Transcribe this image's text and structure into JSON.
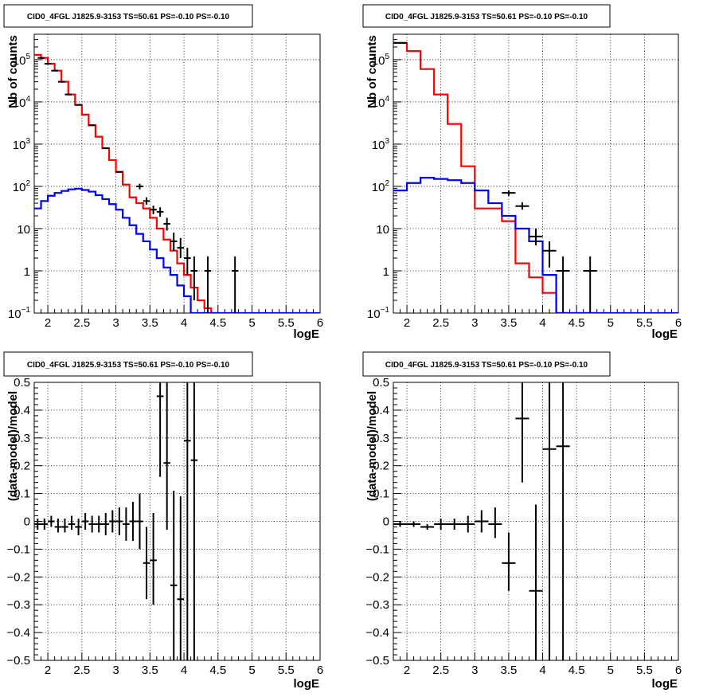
{
  "chart_data": [
    {
      "id": "top-left",
      "type": "line",
      "title": "CID0_4FGL J1825.9-3153 TS=50.61 PS=-0.10 PS=-0.10",
      "xlabel": "logE",
      "ylabel": "Nb of counts",
      "xlim": [
        1.8,
        6.0
      ],
      "ylim": [
        0.1,
        400000
      ],
      "yscale": "log",
      "grid": true,
      "x_ticks": [
        2,
        2.5,
        3,
        3.5,
        4,
        4.5,
        5,
        5.5,
        6
      ],
      "x_tick_labels": [
        "2",
        "2.5",
        "3",
        "3.5",
        "4",
        "4.5",
        "5",
        "5.5",
        "6"
      ],
      "y_ticks": [
        0.1,
        1,
        10,
        100,
        1000,
        10000,
        100000
      ],
      "y_tick_labels": [
        [
          "10",
          "−1"
        ],
        [
          "1",
          ""
        ],
        [
          "10",
          ""
        ],
        [
          "10",
          "2"
        ],
        [
          "10",
          "3"
        ],
        [
          "10",
          "4"
        ],
        [
          "10",
          "5"
        ]
      ],
      "series": [
        {
          "color": "#ff0000",
          "style": "step",
          "bin_edges": [
            1.8,
            1.9,
            2.0,
            2.1,
            2.2,
            2.3,
            2.4,
            2.5,
            2.6,
            2.7,
            2.8,
            2.9,
            3.0,
            3.1,
            3.2,
            3.3,
            3.4,
            3.5,
            3.6,
            3.7,
            3.8,
            3.9,
            4.0,
            4.1,
            4.2,
            4.3,
            4.4,
            4.5
          ],
          "values": [
            130000,
            110000,
            80000,
            55000,
            30000,
            15000,
            8500,
            5000,
            2800,
            1500,
            800,
            420,
            220,
            110,
            55,
            40,
            30,
            18,
            10,
            5.5,
            3.0,
            1.5,
            0.8,
            0.4,
            0.2,
            0.13,
            0.1
          ]
        },
        {
          "color": "#0000ff",
          "style": "step",
          "bin_edges": [
            1.8,
            1.9,
            2.0,
            2.1,
            2.2,
            2.3,
            2.4,
            2.5,
            2.6,
            2.7,
            2.8,
            2.9,
            3.0,
            3.1,
            3.2,
            3.3,
            3.4,
            3.5,
            3.6,
            3.7,
            3.8,
            3.9,
            4.0,
            4.1,
            4.2,
            6.0
          ],
          "values": [
            30,
            45,
            60,
            70,
            78,
            85,
            88,
            82,
            75,
            62,
            50,
            38,
            28,
            18,
            12,
            7.5,
            5,
            3.2,
            2,
            1.2,
            0.8,
            0.45,
            0.25,
            0.1,
            0.1
          ]
        }
      ],
      "points": [
        {
          "x": 1.9,
          "y": 110000,
          "xerr": 0.05,
          "ylo": 110000,
          "yhi": 110000
        },
        {
          "x": 2.0,
          "y": 80000,
          "xerr": 0.05,
          "ylo": 80000,
          "yhi": 80000
        },
        {
          "x": 2.1,
          "y": 55000,
          "xerr": 0.05,
          "ylo": 55000,
          "yhi": 55000
        },
        {
          "x": 2.2,
          "y": 30000,
          "xerr": 0.05,
          "ylo": 30000,
          "yhi": 30000
        },
        {
          "x": 2.3,
          "y": 15000,
          "xerr": 0.05,
          "ylo": 15000,
          "yhi": 15000
        },
        {
          "x": 2.45,
          "y": 8500,
          "xerr": 0.05,
          "ylo": 8500,
          "yhi": 8500
        },
        {
          "x": 2.65,
          "y": 2800,
          "xerr": 0.05,
          "ylo": 2800,
          "yhi": 2800
        },
        {
          "x": 2.85,
          "y": 800,
          "xerr": 0.05,
          "ylo": 800,
          "yhi": 800
        },
        {
          "x": 3.05,
          "y": 220,
          "xerr": 0.05,
          "ylo": 220,
          "yhi": 220
        },
        {
          "x": 3.35,
          "y": 100,
          "xerr": 0.05,
          "ylo": 85,
          "yhi": 115
        },
        {
          "x": 3.45,
          "y": 45,
          "xerr": 0.05,
          "ylo": 37,
          "yhi": 55
        },
        {
          "x": 3.55,
          "y": 28,
          "xerr": 0.05,
          "ylo": 22,
          "yhi": 35
        },
        {
          "x": 3.65,
          "y": 25,
          "xerr": 0.05,
          "ylo": 19,
          "yhi": 32
        },
        {
          "x": 3.75,
          "y": 13,
          "xerr": 0.05,
          "ylo": 9,
          "yhi": 18
        },
        {
          "x": 3.85,
          "y": 5,
          "xerr": 0.05,
          "ylo": 3,
          "yhi": 8
        },
        {
          "x": 3.95,
          "y": 3.5,
          "xerr": 0.05,
          "ylo": 2,
          "yhi": 6
        },
        {
          "x": 4.05,
          "y": 2,
          "xerr": 0.05,
          "ylo": 0.8,
          "yhi": 3.5
        },
        {
          "x": 4.15,
          "y": 1,
          "xerr": 0.05,
          "ylo": 0.2,
          "yhi": 2.2
        },
        {
          "x": 4.35,
          "y": 1,
          "xerr": 0.05,
          "ylo": 0.1,
          "yhi": 2.2
        },
        {
          "x": 4.75,
          "y": 1,
          "xerr": 0.05,
          "ylo": 0.1,
          "yhi": 2.2
        }
      ]
    },
    {
      "id": "top-right",
      "type": "line",
      "title": "CID0_4FGL J1825.9-3153 TS=50.61 PS=-0.10 PS=-0.10",
      "xlabel": "logE",
      "ylabel": "Nb of counts",
      "xlim": [
        1.8,
        6.0
      ],
      "ylim": [
        0.1,
        400000
      ],
      "yscale": "log",
      "grid": true,
      "x_ticks": [
        2,
        2.5,
        3,
        3.5,
        4,
        4.5,
        5,
        5.5,
        6
      ],
      "x_tick_labels": [
        "2",
        "2.5",
        "3",
        "3.5",
        "4",
        "4.5",
        "5",
        "5.5",
        "6"
      ],
      "y_ticks": [
        0.1,
        1,
        10,
        100,
        1000,
        10000,
        100000
      ],
      "y_tick_labels": [
        [
          "10",
          "−1"
        ],
        [
          "1",
          ""
        ],
        [
          "10",
          ""
        ],
        [
          "10",
          "2"
        ],
        [
          "10",
          "3"
        ],
        [
          "10",
          "4"
        ],
        [
          "10",
          "5"
        ]
      ],
      "series": [
        {
          "color": "#ff0000",
          "style": "step",
          "bin_edges": [
            1.8,
            2.0,
            2.2,
            2.4,
            2.6,
            2.8,
            3.0,
            3.2,
            3.4,
            3.6,
            3.8,
            4.0,
            4.2,
            4.4,
            4.6,
            4.8
          ],
          "values": [
            250000,
            160000,
            60000,
            15000,
            3000,
            300,
            30,
            30,
            15,
            1.5,
            0.7,
            0.3,
            0.1,
            0.1,
            0.1
          ]
        },
        {
          "color": "#0000ff",
          "style": "step",
          "bin_edges": [
            1.8,
            2.0,
            2.2,
            2.4,
            2.6,
            2.8,
            3.0,
            3.2,
            3.4,
            3.6,
            3.8,
            4.0,
            4.2,
            6.0
          ],
          "values": [
            80,
            120,
            160,
            150,
            140,
            120,
            80,
            40,
            20,
            10,
            5,
            0.8,
            0.1
          ]
        }
      ],
      "points": [
        {
          "x": 1.9,
          "y": 250000,
          "xerr": 0.1,
          "ylo": 250000,
          "yhi": 250000
        },
        {
          "x": 3.5,
          "y": 70,
          "xerr": 0.1,
          "ylo": 60,
          "yhi": 80
        },
        {
          "x": 3.7,
          "y": 34,
          "xerr": 0.1,
          "ylo": 28,
          "yhi": 42
        },
        {
          "x": 3.9,
          "y": 6.5,
          "xerr": 0.1,
          "ylo": 4,
          "yhi": 10
        },
        {
          "x": 4.1,
          "y": 3,
          "xerr": 0.1,
          "ylo": 1.2,
          "yhi": 5
        },
        {
          "x": 4.3,
          "y": 1,
          "xerr": 0.1,
          "ylo": 0.1,
          "yhi": 2.2
        },
        {
          "x": 4.7,
          "y": 1,
          "xerr": 0.1,
          "ylo": 0.1,
          "yhi": 2.2
        }
      ]
    },
    {
      "id": "bottom-left",
      "type": "scatter",
      "title": "CID0_4FGL J1825.9-3153 TS=50.61 PS=-0.10 PS=-0.10",
      "xlabel": "logE",
      "ylabel": "(data-model)/model",
      "xlim": [
        1.8,
        6.0
      ],
      "ylim": [
        -0.5,
        0.5
      ],
      "yscale": "linear",
      "grid": true,
      "x_ticks": [
        2,
        2.5,
        3,
        3.5,
        4,
        4.5,
        5,
        5.5,
        6
      ],
      "x_tick_labels": [
        "2",
        "2.5",
        "3",
        "3.5",
        "4",
        "4.5",
        "5",
        "5.5",
        "6"
      ],
      "y_ticks": [
        -0.5,
        -0.4,
        -0.3,
        -0.2,
        -0.1,
        0,
        0.1,
        0.2,
        0.3,
        0.4,
        0.5
      ],
      "y_tick_labels": [
        "−0.5",
        "−0.4",
        "−0.3",
        "−0.2",
        "−0.1",
        "0",
        "0.1",
        "0.2",
        "0.3",
        "0.4",
        "0.5"
      ],
      "points": [
        {
          "x": 1.85,
          "y": -0.01,
          "xerr": 0.05,
          "ylo": -0.03,
          "yhi": 0.01
        },
        {
          "x": 1.95,
          "y": -0.01,
          "xerr": 0.05,
          "ylo": -0.03,
          "yhi": 0.01
        },
        {
          "x": 2.05,
          "y": 0.0,
          "xerr": 0.05,
          "ylo": -0.02,
          "yhi": 0.02
        },
        {
          "x": 2.15,
          "y": -0.02,
          "xerr": 0.05,
          "ylo": -0.04,
          "yhi": 0.01
        },
        {
          "x": 2.25,
          "y": -0.02,
          "xerr": 0.05,
          "ylo": -0.04,
          "yhi": 0.01
        },
        {
          "x": 2.35,
          "y": -0.01,
          "xerr": 0.05,
          "ylo": -0.03,
          "yhi": 0.02
        },
        {
          "x": 2.45,
          "y": -0.02,
          "xerr": 0.05,
          "ylo": -0.05,
          "yhi": 0.01
        },
        {
          "x": 2.55,
          "y": 0.0,
          "xerr": 0.05,
          "ylo": -0.03,
          "yhi": 0.03
        },
        {
          "x": 2.65,
          "y": -0.01,
          "xerr": 0.05,
          "ylo": -0.04,
          "yhi": 0.02
        },
        {
          "x": 2.75,
          "y": -0.01,
          "xerr": 0.05,
          "ylo": -0.04,
          "yhi": 0.02
        },
        {
          "x": 2.85,
          "y": -0.01,
          "xerr": 0.05,
          "ylo": -0.05,
          "yhi": 0.03
        },
        {
          "x": 2.95,
          "y": 0.0,
          "xerr": 0.05,
          "ylo": -0.04,
          "yhi": 0.04
        },
        {
          "x": 3.05,
          "y": 0.0,
          "xerr": 0.05,
          "ylo": -0.05,
          "yhi": 0.05
        },
        {
          "x": 3.15,
          "y": -0.01,
          "xerr": 0.05,
          "ylo": -0.07,
          "yhi": 0.05
        },
        {
          "x": 3.25,
          "y": 0.0,
          "xerr": 0.05,
          "ylo": -0.07,
          "yhi": 0.07
        },
        {
          "x": 3.35,
          "y": 0.0,
          "xerr": 0.05,
          "ylo": -0.1,
          "yhi": 0.1
        },
        {
          "x": 3.45,
          "y": -0.15,
          "xerr": 0.05,
          "ylo": -0.28,
          "yhi": -0.02
        },
        {
          "x": 3.55,
          "y": -0.14,
          "xerr": 0.05,
          "ylo": -0.3,
          "yhi": 0.03
        },
        {
          "x": 3.65,
          "y": 0.45,
          "xerr": 0.05,
          "ylo": 0.16,
          "yhi": 0.5
        },
        {
          "x": 3.75,
          "y": 0.21,
          "xerr": 0.05,
          "ylo": -0.03,
          "yhi": 0.5
        },
        {
          "x": 3.85,
          "y": -0.23,
          "xerr": 0.05,
          "ylo": -0.5,
          "yhi": 0.11
        },
        {
          "x": 3.95,
          "y": -0.28,
          "xerr": 0.05,
          "ylo": -0.5,
          "yhi": 0.09
        },
        {
          "x": 4.05,
          "y": 0.29,
          "xerr": 0.05,
          "ylo": -0.5,
          "yhi": 0.5
        },
        {
          "x": 4.15,
          "y": 0.22,
          "xerr": 0.05,
          "ylo": -0.5,
          "yhi": 0.5
        }
      ]
    },
    {
      "id": "bottom-right",
      "type": "scatter",
      "title": "CID0_4FGL J1825.9-3153 TS=50.61 PS=-0.10 PS=-0.10",
      "xlabel": "logE",
      "ylabel": "(data-model)/model",
      "xlim": [
        1.8,
        6.0
      ],
      "ylim": [
        -0.5,
        0.5
      ],
      "yscale": "linear",
      "grid": true,
      "x_ticks": [
        2,
        2.5,
        3,
        3.5,
        4,
        4.5,
        5,
        5.5,
        6
      ],
      "x_tick_labels": [
        "2",
        "2.5",
        "3",
        "3.5",
        "4",
        "4.5",
        "5",
        "5.5",
        "6"
      ],
      "y_ticks": [
        -0.5,
        -0.4,
        -0.3,
        -0.2,
        -0.1,
        0,
        0.1,
        0.2,
        0.3,
        0.4,
        0.5
      ],
      "y_tick_labels": [
        "−0.5",
        "−0.4",
        "−0.3",
        "−0.2",
        "−0.1",
        "0",
        "0.1",
        "0.2",
        "0.3",
        "0.4",
        "0.5"
      ],
      "points": [
        {
          "x": 1.9,
          "y": -0.01,
          "xerr": 0.1,
          "ylo": -0.02,
          "yhi": 0.0
        },
        {
          "x": 2.1,
          "y": -0.01,
          "xerr": 0.1,
          "ylo": -0.02,
          "yhi": 0.0
        },
        {
          "x": 2.3,
          "y": -0.02,
          "xerr": 0.1,
          "ylo": -0.03,
          "yhi": -0.01
        },
        {
          "x": 2.5,
          "y": -0.01,
          "xerr": 0.1,
          "ylo": -0.03,
          "yhi": 0.01
        },
        {
          "x": 2.7,
          "y": -0.01,
          "xerr": 0.1,
          "ylo": -0.03,
          "yhi": 0.01
        },
        {
          "x": 2.9,
          "y": -0.01,
          "xerr": 0.1,
          "ylo": -0.04,
          "yhi": 0.02
        },
        {
          "x": 3.1,
          "y": 0.0,
          "xerr": 0.1,
          "ylo": -0.04,
          "yhi": 0.04
        },
        {
          "x": 3.3,
          "y": -0.01,
          "xerr": 0.1,
          "ylo": -0.06,
          "yhi": 0.05
        },
        {
          "x": 3.5,
          "y": -0.15,
          "xerr": 0.1,
          "ylo": -0.25,
          "yhi": -0.04
        },
        {
          "x": 3.7,
          "y": 0.37,
          "xerr": 0.1,
          "ylo": 0.14,
          "yhi": 0.5
        },
        {
          "x": 3.9,
          "y": -0.25,
          "xerr": 0.1,
          "ylo": -0.5,
          "yhi": 0.06
        },
        {
          "x": 4.1,
          "y": 0.26,
          "xerr": 0.1,
          "ylo": -0.5,
          "yhi": 0.5
        },
        {
          "x": 4.3,
          "y": 0.27,
          "xerr": 0.1,
          "ylo": -0.5,
          "yhi": 0.5
        }
      ]
    }
  ]
}
